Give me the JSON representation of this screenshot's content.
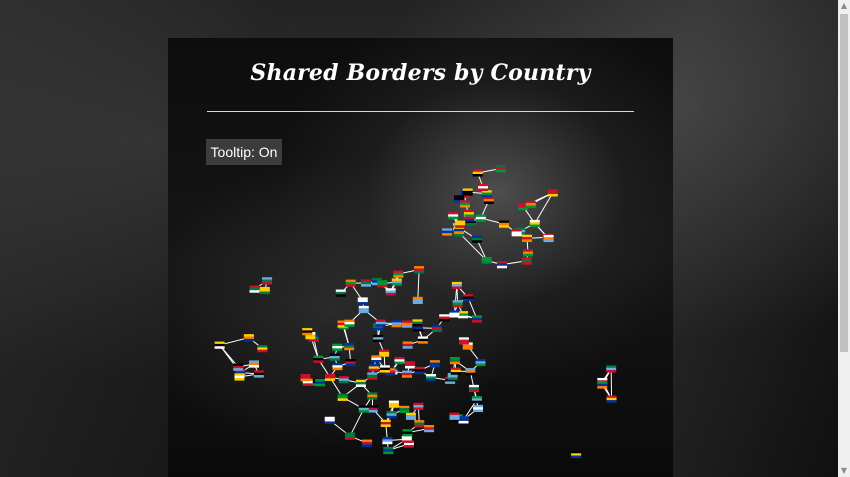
{
  "page": {
    "title": "Shared Borders by Country"
  },
  "controls": {
    "tooltip_label": "Tooltip: On"
  },
  "graph": {
    "edge_color": "#ffffff"
  },
  "scrollbar": {
    "up_icon": "chevron-up-icon",
    "down_icon": "chevron-down-icon"
  }
}
